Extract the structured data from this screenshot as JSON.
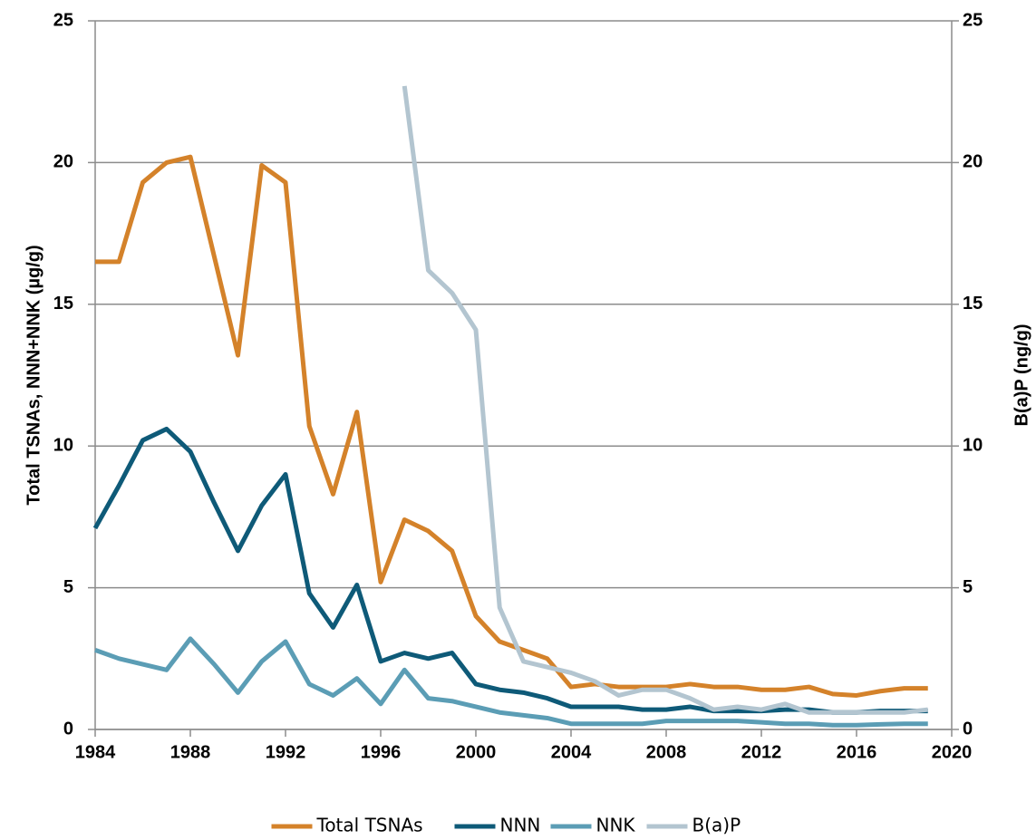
{
  "chart_data": {
    "type": "line",
    "y_label": "Total TSNAs, NNN+NNK  (µg/g)",
    "y2_label": "B(a)P (ng/g)",
    "x": [
      1984,
      1985,
      1986,
      1987,
      1988,
      1989,
      1990,
      1991,
      1992,
      1993,
      1994,
      1995,
      1996,
      1997,
      1998,
      1999,
      2000,
      2001,
      2002,
      2003,
      2004,
      2005,
      2006,
      2007,
      2008,
      2009,
      2010,
      2011,
      2012,
      2013,
      2014,
      2015,
      2016,
      2017,
      2018,
      2019
    ],
    "series": [
      {
        "name": "Total TSNAs",
        "color": "#d4822a",
        "values": [
          16.5,
          16.5,
          19.3,
          20.0,
          20.2,
          16.7,
          13.2,
          19.9,
          19.3,
          10.7,
          8.3,
          11.2,
          5.2,
          7.4,
          7.0,
          6.3,
          4.0,
          3.1,
          2.8,
          2.5,
          1.5,
          1.6,
          1.5,
          1.5,
          1.5,
          1.6,
          1.5,
          1.5,
          1.4,
          1.4,
          1.5,
          1.25,
          1.2,
          1.35,
          1.45,
          1.45
        ]
      },
      {
        "name": "NNN",
        "color": "#0e5a78",
        "values": [
          7.1,
          8.6,
          10.2,
          10.6,
          9.8,
          8.0,
          6.3,
          7.9,
          9.0,
          4.8,
          3.6,
          5.1,
          2.4,
          2.7,
          2.5,
          2.7,
          1.6,
          1.4,
          1.3,
          1.1,
          0.8,
          0.8,
          0.8,
          0.7,
          0.7,
          0.8,
          0.65,
          0.65,
          0.65,
          0.7,
          0.7,
          0.6,
          0.6,
          0.65,
          0.65,
          0.65
        ]
      },
      {
        "name": "NNK",
        "color": "#5b9db5",
        "values": [
          2.8,
          2.5,
          2.3,
          2.1,
          3.2,
          2.3,
          1.3,
          2.4,
          3.1,
          1.6,
          1.2,
          1.8,
          0.9,
          2.1,
          1.1,
          1.0,
          0.8,
          0.6,
          0.5,
          0.4,
          0.2,
          0.2,
          0.2,
          0.2,
          0.3,
          0.3,
          0.3,
          0.3,
          0.25,
          0.2,
          0.2,
          0.15,
          0.15,
          0.18,
          0.2,
          0.2
        ]
      },
      {
        "name": "B(a)P",
        "color": "#b3c5d0",
        "axis": "y2",
        "values": [
          null,
          null,
          null,
          null,
          null,
          null,
          null,
          null,
          null,
          null,
          null,
          null,
          null,
          22.7,
          16.2,
          15.4,
          14.1,
          4.3,
          2.4,
          2.2,
          2.0,
          1.7,
          1.2,
          1.4,
          1.4,
          1.1,
          0.7,
          0.8,
          0.7,
          0.9,
          0.6,
          0.6,
          0.6,
          0.6,
          0.6,
          0.7
        ]
      }
    ],
    "xlim": [
      1984,
      2020
    ],
    "xticks": [
      1984,
      1988,
      1992,
      1996,
      2000,
      2004,
      2008,
      2012,
      2016,
      2020
    ],
    "ylim": [
      0,
      25
    ],
    "yticks": [
      0,
      5,
      10,
      15,
      20,
      25
    ],
    "y2lim": [
      0,
      25
    ],
    "y2ticks": [
      0,
      5,
      10,
      15,
      20,
      25
    ],
    "grid": true,
    "legend": "bottom"
  }
}
